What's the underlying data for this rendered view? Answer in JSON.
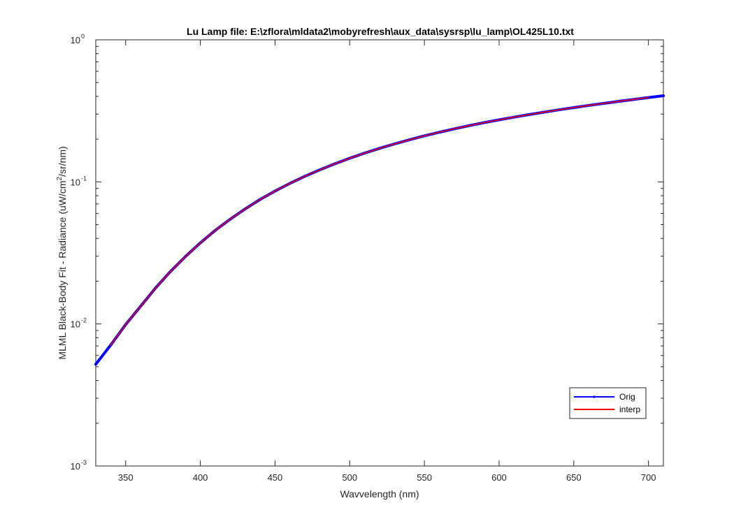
{
  "chart_data": {
    "type": "line",
    "title": "Lu Lamp file: E:\\zflora\\mldata2\\mobyrefresh\\aux_data\\sysrsp\\lu_lamp\\OL425L10.txt",
    "xlabel": "Wavvelength (nm)",
    "ylabel": {
      "prefix": "MLML Black-Body Fit - Radiance (uW/cm",
      "superscript": "2",
      "suffix": "/sr/nm)"
    },
    "xlim": [
      330,
      710
    ],
    "ylim": [
      0.001,
      1
    ],
    "yscale": "log",
    "x_ticks": [
      350,
      400,
      450,
      500,
      550,
      600,
      650,
      700
    ],
    "y_ticks": [
      {
        "base": "10",
        "exp": "-3"
      },
      {
        "base": "10",
        "exp": "-2"
      },
      {
        "base": "10",
        "exp": "-1"
      },
      {
        "base": "10",
        "exp": "0"
      }
    ],
    "legend": {
      "placement": "lower-right",
      "entries": [
        "Orig",
        "interp"
      ]
    },
    "series": [
      {
        "name": "Orig",
        "color": "#0000ff",
        "x": [
          330,
          340,
          350,
          360,
          370,
          380,
          390,
          400,
          410,
          420,
          430,
          440,
          450,
          460,
          470,
          480,
          490,
          500,
          510,
          520,
          530,
          540,
          550,
          560,
          570,
          580,
          590,
          600,
          610,
          620,
          630,
          640,
          650,
          660,
          670,
          680,
          690,
          700,
          710
        ],
        "y": [
          0.0052,
          0.0071,
          0.0099,
          0.0133,
          0.0179,
          0.0234,
          0.0298,
          0.0372,
          0.0456,
          0.0546,
          0.0645,
          0.0752,
          0.0862,
          0.0976,
          0.1095,
          0.1216,
          0.134,
          0.1467,
          0.1594,
          0.1722,
          0.185,
          0.1979,
          0.2108,
          0.2236,
          0.2363,
          0.2488,
          0.2613,
          0.2735,
          0.2855,
          0.2976,
          0.3096,
          0.3215,
          0.3333,
          0.3451,
          0.3569,
          0.3687,
          0.3805,
          0.3923,
          0.404
        ]
      },
      {
        "name": "interp",
        "color": "#ff0000",
        "x": [
          340,
          350,
          360,
          370,
          380,
          390,
          400,
          410,
          420,
          430,
          440,
          450,
          460,
          470,
          480,
          490,
          500,
          510,
          520,
          530,
          540,
          550,
          560,
          570,
          580,
          590,
          600,
          610,
          620,
          630,
          640,
          650,
          660,
          670,
          680,
          690,
          700
        ],
        "y": [
          0.0071,
          0.0099,
          0.0133,
          0.0179,
          0.0234,
          0.0298,
          0.0372,
          0.0456,
          0.0546,
          0.0645,
          0.0752,
          0.0862,
          0.0976,
          0.1095,
          0.1216,
          0.134,
          0.1467,
          0.1594,
          0.1722,
          0.185,
          0.1979,
          0.2108,
          0.2236,
          0.2363,
          0.2488,
          0.2613,
          0.2735,
          0.2855,
          0.2976,
          0.3096,
          0.3215,
          0.3333,
          0.3451,
          0.3569,
          0.3687,
          0.3805,
          0.3923
        ]
      }
    ]
  }
}
